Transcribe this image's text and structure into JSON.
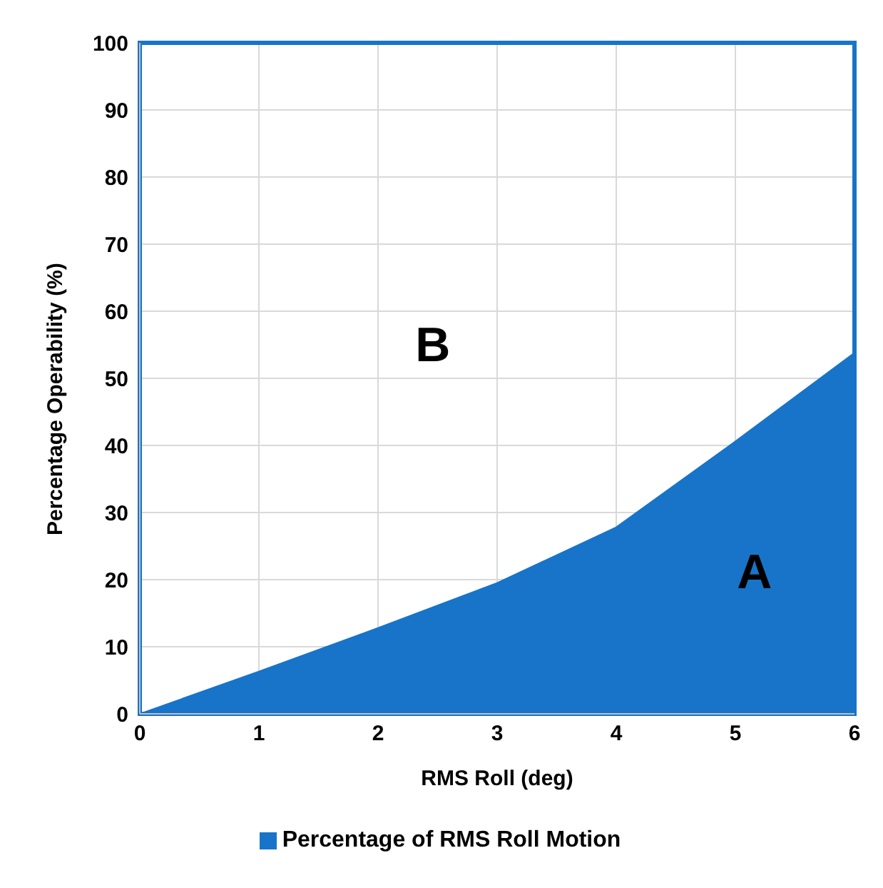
{
  "chart_data": {
    "type": "area",
    "xlabel": "RMS Roll (deg)",
    "ylabel": "Percentage Operability (%)",
    "x": [
      0,
      1,
      2,
      3,
      4,
      5,
      6
    ],
    "series": [
      {
        "name": "Percentage of RMS Roll Motion",
        "color": "#1874c8",
        "values": [
          0,
          6.3,
          12.8,
          19.5,
          27.8,
          40.6,
          53.8
        ]
      }
    ],
    "xlim": [
      0,
      6
    ],
    "xticks": [
      0,
      1,
      2,
      3,
      4,
      5,
      6
    ],
    "ylim": [
      0,
      100
    ],
    "yticks": [
      0,
      10,
      20,
      30,
      40,
      50,
      60,
      70,
      80,
      90,
      100
    ],
    "grid": true,
    "legend": "bottom",
    "annotations": [
      "B",
      "A"
    ]
  }
}
